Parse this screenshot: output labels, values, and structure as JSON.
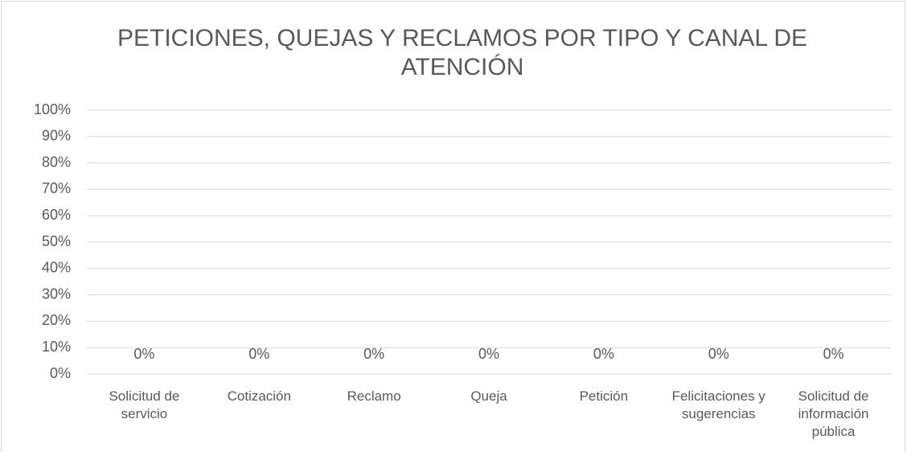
{
  "chart_data": {
    "type": "bar",
    "title": "PETICIONES, QUEJAS Y RECLAMOS POR TIPO Y CANAL DE ATENCIÓN",
    "categories": [
      "Solicitud de servicio",
      "Cotización",
      "Reclamo",
      "Queja",
      "Petición",
      "Felicitaciones y sugerencias",
      "Solicitud de información pública"
    ],
    "values": [
      0,
      0,
      0,
      0,
      0,
      0,
      0
    ],
    "value_labels": [
      "0%",
      "0%",
      "0%",
      "0%",
      "0%",
      "0%",
      "0%"
    ],
    "ylim": [
      0,
      100
    ],
    "yticks": [
      {
        "value": 0,
        "label": "0%"
      },
      {
        "value": 10,
        "label": "10%"
      },
      {
        "value": 20,
        "label": "20%"
      },
      {
        "value": 30,
        "label": "30%"
      },
      {
        "value": 40,
        "label": "40%"
      },
      {
        "value": 50,
        "label": "50%"
      },
      {
        "value": 60,
        "label": "60%"
      },
      {
        "value": 70,
        "label": "70%"
      },
      {
        "value": 80,
        "label": "80%"
      },
      {
        "value": 90,
        "label": "90%"
      },
      {
        "value": 100,
        "label": "100%"
      }
    ],
    "grid": true
  }
}
